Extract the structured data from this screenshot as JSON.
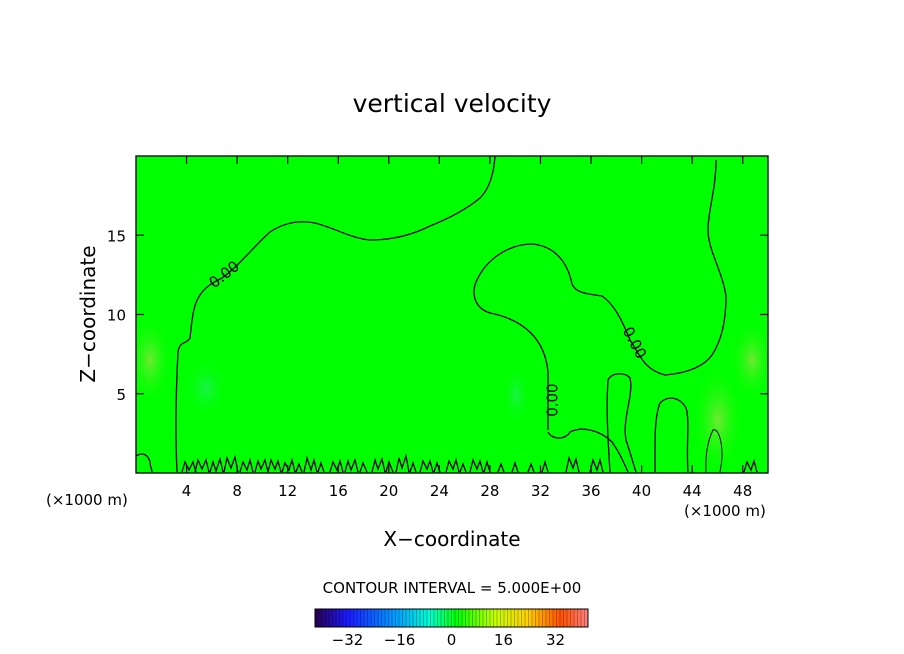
{
  "chart_data": {
    "type": "heatmap",
    "title": "vertical velocity",
    "xlabel": "X−coordinate",
    "ylabel": "Z−coordinate",
    "x_unit_left": "(×1000 m)",
    "x_unit_right": "(×1000 m)",
    "xlim": [
      0,
      50
    ],
    "ylim": [
      0,
      20
    ],
    "x_ticks": [
      4,
      8,
      12,
      16,
      20,
      24,
      28,
      32,
      36,
      40,
      44,
      48
    ],
    "y_ticks": [
      5,
      10,
      15
    ],
    "x_tick_labels": [
      "4",
      "8",
      "12",
      "16",
      "20",
      "24",
      "28",
      "32",
      "36",
      "40",
      "44",
      "48"
    ],
    "y_tick_labels": [
      "5",
      "10",
      "15"
    ],
    "field_color": "#00ff00",
    "contour_color": "#000000",
    "contour_labels": [
      {
        "text": "0.00",
        "x": 7,
        "z": 12.5,
        "angle": -38
      },
      {
        "text": "0.00",
        "x": 33,
        "z": 4.6,
        "angle": -90
      },
      {
        "text": "0.00",
        "x": 39.4,
        "z": 8.2,
        "angle": 62
      }
    ],
    "contour_interval_label": "CONTOUR INTERVAL =  5.000E+00",
    "colorbar": {
      "range": [
        -42,
        42
      ],
      "ticks": [
        -32,
        -16,
        0,
        16,
        32
      ],
      "tick_labels": [
        "−32",
        "−16",
        "0",
        "16",
        "32"
      ],
      "stops": [
        "#2a0050",
        "#1a1aff",
        "#00a0ff",
        "#00ffd0",
        "#00ff00",
        "#c8ff00",
        "#ffd000",
        "#ff5000",
        "#ff8080"
      ]
    }
  }
}
